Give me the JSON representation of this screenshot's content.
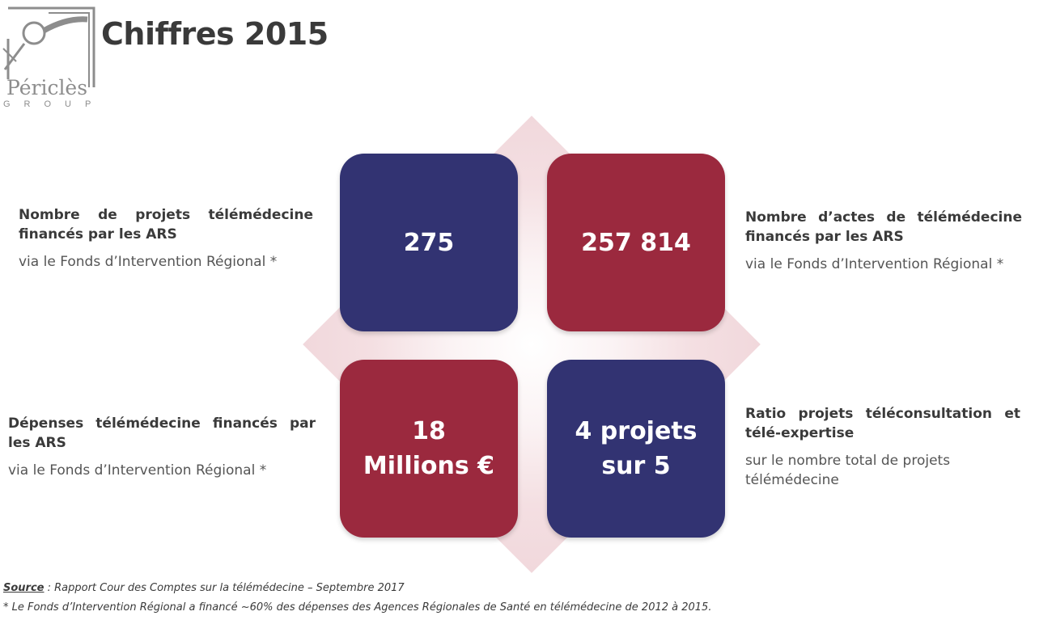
{
  "logo": {
    "name": "Périclès",
    "group": "GROUP"
  },
  "title": "Chiffres 2015",
  "tiles": {
    "top_left": {
      "lines": [
        "275"
      ],
      "color": "#323372"
    },
    "top_right": {
      "lines": [
        "257 814"
      ],
      "color": "#9b293e"
    },
    "bottom_left": {
      "lines": [
        "18",
        "Millions €"
      ],
      "color": "#9b293e"
    },
    "bottom_right": {
      "lines": [
        "4 projets",
        "sur 5"
      ],
      "color": "#323372"
    }
  },
  "blocks": {
    "top_left": {
      "heading": "Nombre de projets télémédecine financés par les ARS",
      "sub": "via le Fonds d’Intervention Régional *"
    },
    "top_right": {
      "heading": "Nombre d’actes de télémédecine financés par les ARS",
      "sub": "via le Fonds d’Intervention Régional *"
    },
    "bottom_left": {
      "heading": "Dépenses télémédecine financés par les ARS",
      "sub": "via le Fonds d’Intervention Régional *"
    },
    "bottom_right": {
      "heading": "Ratio projets téléconsultation et télé-expertise",
      "sub": "sur le nombre total de projets télémédecine"
    }
  },
  "footer": {
    "source_label": "Source",
    "source_text": " : Rapport Cour des Comptes sur la télémédecine – Septembre 2017",
    "footnote": "* Le Fonds d’Intervention Régional a financé ~60% des dépenses des Agences Régionales de Santé en télémédecine de 2012 à 2015."
  }
}
